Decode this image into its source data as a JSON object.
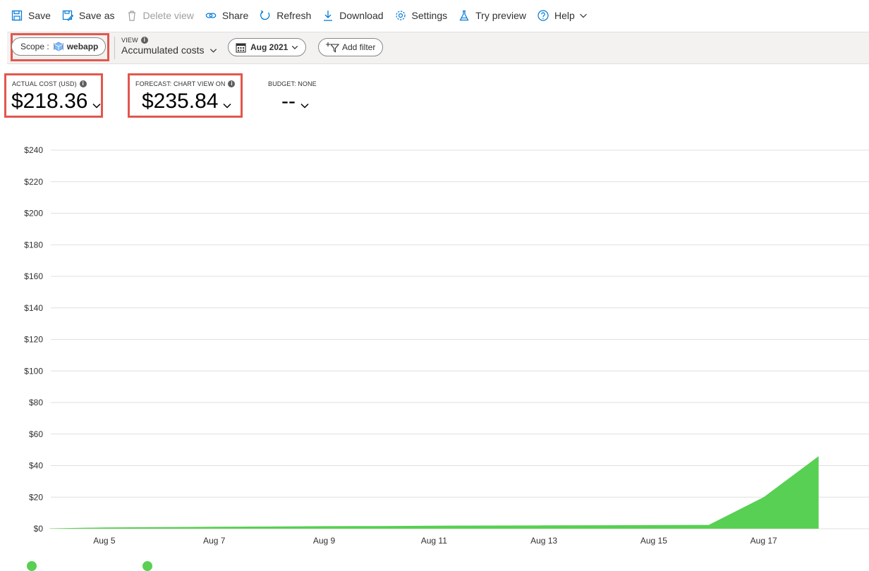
{
  "toolbar": {
    "save": "Save",
    "save_as": "Save as",
    "delete_view": "Delete view",
    "share": "Share",
    "refresh": "Refresh",
    "download": "Download",
    "settings": "Settings",
    "try_preview": "Try preview",
    "help": "Help"
  },
  "filters": {
    "scope_label": "Scope :",
    "scope_value": "webapp",
    "view_caption": "VIEW",
    "view_value": "Accumulated costs",
    "date_value": "Aug 2021",
    "add_filter": "Add filter"
  },
  "kpis": {
    "actual_caption": "ACTUAL COST (USD)",
    "actual_value": "$218.36",
    "forecast_caption": "FORECAST: CHART VIEW ON",
    "forecast_value": "$235.84",
    "budget_caption": "BUDGET: NONE",
    "budget_value": "--"
  },
  "colors": {
    "accent": "#0078d4",
    "highlight": "#e2574c",
    "series": "#57d053"
  },
  "chart_data": {
    "type": "area",
    "ylim": [
      0,
      240
    ],
    "y_ticks": [
      0,
      20,
      40,
      60,
      80,
      100,
      120,
      140,
      160,
      180,
      200,
      220,
      240
    ],
    "y_tick_labels": [
      "$0",
      "$20",
      "$40",
      "$60",
      "$80",
      "$100",
      "$120",
      "$140",
      "$160",
      "$180",
      "$200",
      "$220",
      "$240"
    ],
    "x_tick_labels": [
      "Aug 5",
      "Aug 7",
      "Aug 9",
      "Aug 11",
      "Aug 13",
      "Aug 15",
      "Aug 17"
    ],
    "grid": true,
    "series": [
      {
        "color": "#57d053",
        "x": [
          "Aug 4",
          "Aug 5",
          "Aug 6",
          "Aug 7",
          "Aug 8",
          "Aug 9",
          "Aug 10",
          "Aug 11",
          "Aug 12",
          "Aug 13",
          "Aug 14",
          "Aug 15",
          "Aug 16",
          "Aug 17",
          "Aug 18"
        ],
        "values": [
          0.2,
          0.8,
          1.0,
          1.2,
          1.4,
          1.6,
          1.7,
          1.9,
          2.0,
          2.1,
          2.2,
          2.3,
          2.4,
          20,
          46
        ]
      }
    ]
  }
}
